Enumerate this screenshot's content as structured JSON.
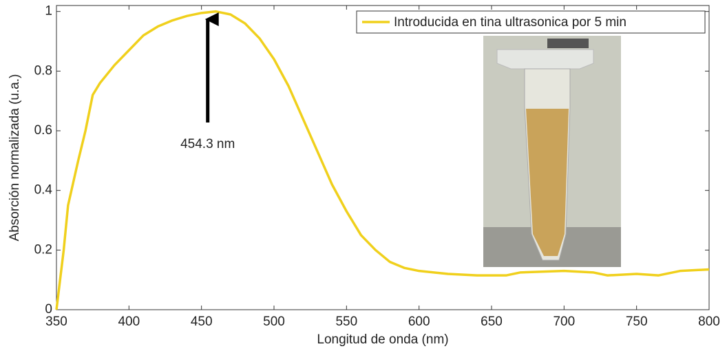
{
  "chart_data": {
    "type": "line",
    "xlabel": "Longitud de onda (nm)",
    "ylabel": "Absorción normalizada (u.a.)",
    "x": [
      350,
      355,
      358,
      365,
      370,
      375,
      380,
      390,
      400,
      410,
      420,
      430,
      440,
      450,
      460,
      470,
      480,
      490,
      500,
      510,
      520,
      530,
      540,
      550,
      560,
      570,
      580,
      590,
      600,
      620,
      640,
      660,
      670,
      700,
      720,
      730,
      750,
      765,
      780,
      800
    ],
    "series": [
      {
        "name": "Introducida en tina ultrasonica por 5 min",
        "color": "#f0d01c",
        "values": [
          0,
          0.2,
          0.35,
          0.5,
          0.6,
          0.72,
          0.76,
          0.82,
          0.87,
          0.92,
          0.95,
          0.97,
          0.985,
          0.995,
          1.0,
          0.99,
          0.96,
          0.91,
          0.84,
          0.75,
          0.64,
          0.53,
          0.42,
          0.33,
          0.25,
          0.2,
          0.16,
          0.14,
          0.13,
          0.12,
          0.115,
          0.115,
          0.125,
          0.13,
          0.125,
          0.115,
          0.12,
          0.115,
          0.13,
          0.135
        ]
      }
    ],
    "annotation": {
      "text": "454.3 nm",
      "x": 454.3
    },
    "xlim": [
      350,
      800
    ],
    "ylim": [
      0,
      1.02
    ],
    "xticks": [
      350,
      400,
      450,
      500,
      550,
      600,
      650,
      700,
      750,
      800
    ],
    "yticks": [
      0,
      0.2,
      0.4,
      0.6,
      0.8,
      1
    ],
    "legend": "upper right",
    "grid": false
  }
}
